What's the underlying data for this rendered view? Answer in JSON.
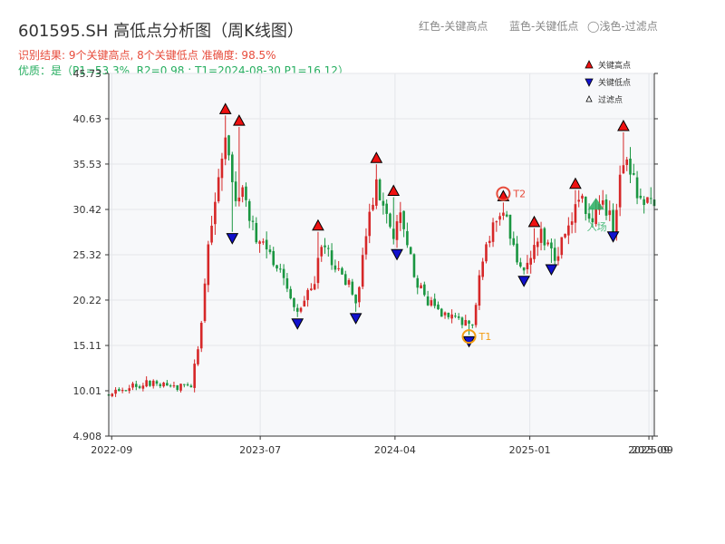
{
  "page": {
    "title": "601595.SH 高低点分析图（周K线图）",
    "hint_red": "红色-关键高点",
    "hint_blue": "蓝色-关键低点",
    "hint_light": "◯浅色-过滤点",
    "result_line": "识别结果: 9个关键高点, 8个关键低点  准确度: 98.5%",
    "quality_line": "优质：是（P1=53.3%, R2=0.98 ; T1=2024-08-30 P1=16.12）"
  },
  "colors": {
    "up": "#d62728",
    "down": "#1a9641",
    "high_marker": "#ee1111",
    "low_marker": "#1111cc",
    "t_circle": "#f39c12",
    "t2_circle": "#e74c3c",
    "buy_marker": "#27ae60",
    "plot_bg": "#f7f8fa",
    "grid": "#e4e6ea"
  },
  "chart_data": {
    "type": "candlestick",
    "x_range": [
      "2022-08-26",
      "2025-09-12"
    ],
    "ylim": [
      4.908,
      45.73
    ],
    "y_ticks": [
      "4.908",
      "10.01",
      "15.11",
      "20.22",
      "25.32",
      "30.42",
      "35.53",
      "40.63",
      "45.73"
    ],
    "x_ticks": [
      {
        "date": "2022-09-01",
        "label": "2022-09"
      },
      {
        "date": "2023-07-01",
        "label": "2023-07"
      },
      {
        "date": "2024-04-01",
        "label": "2024-04"
      },
      {
        "date": "2025-01-01",
        "label": "2025-01"
      },
      {
        "date": "2025-09-01",
        "label": "2025-09"
      },
      {
        "date": "2025-09-08",
        "label": "2025-09"
      }
    ],
    "grid": true,
    "legend": {
      "position": "top-right",
      "entries": [
        {
          "label": "关键高点",
          "marker": "high"
        },
        {
          "label": "关键低点",
          "marker": "low"
        },
        {
          "label": "过滤点",
          "marker": "filtered"
        }
      ]
    },
    "price_path": [
      [
        "2022-08-26",
        9.6
      ],
      [
        "2022-10-15",
        10.6
      ],
      [
        "2022-12-01",
        11.0
      ],
      [
        "2023-01-10",
        10.4
      ],
      [
        "2023-02-10",
        10.7
      ],
      [
        "2023-02-25",
        15.0
      ],
      [
        "2023-03-25",
        30.0
      ],
      [
        "2023-04-20",
        39.0
      ],
      [
        "2023-05-10",
        31.0
      ],
      [
        "2023-05-25",
        33.0
      ],
      [
        "2023-06-20",
        28.0
      ],
      [
        "2023-08-01",
        24.0
      ],
      [
        "2023-09-05",
        20.5
      ],
      [
        "2023-09-20",
        18.5
      ],
      [
        "2023-10-20",
        22.5
      ],
      [
        "2023-11-05",
        27.5
      ],
      [
        "2023-11-25",
        24.0
      ],
      [
        "2023-12-20",
        23.0
      ],
      [
        "2024-01-15",
        19.5
      ],
      [
        "2024-02-01",
        28.0
      ],
      [
        "2024-02-25",
        33.5
      ],
      [
        "2024-03-15",
        30.0
      ],
      [
        "2024-04-01",
        26.0
      ],
      [
        "2024-04-10",
        31.0
      ],
      [
        "2024-05-01",
        25.0
      ],
      [
        "2024-06-01",
        20.0
      ],
      [
        "2024-07-01",
        19.0
      ],
      [
        "2024-08-20",
        17.5
      ],
      [
        "2024-09-10",
        18.0
      ],
      [
        "2024-09-25",
        25.0
      ],
      [
        "2024-10-20",
        28.5
      ],
      [
        "2024-11-08",
        30.5
      ],
      [
        "2024-11-25",
        26.0
      ],
      [
        "2024-12-25",
        24.0
      ],
      [
        "2025-01-10",
        26.0
      ],
      [
        "2025-01-25",
        28.0
      ],
      [
        "2025-02-15",
        25.0
      ],
      [
        "2025-03-20",
        27.5
      ],
      [
        "2025-04-10",
        32.0
      ],
      [
        "2025-04-25",
        30.0
      ],
      [
        "2025-05-15",
        29.5
      ],
      [
        "2025-06-05",
        31.0
      ],
      [
        "2025-06-20",
        28.5
      ],
      [
        "2025-07-10",
        36.0
      ],
      [
        "2025-07-25",
        34.0
      ],
      [
        "2025-08-15",
        31.5
      ],
      [
        "2025-09-12",
        31.8
      ]
    ],
    "key_highs": [
      {
        "date": "2023-04-21",
        "value": 41.2
      },
      {
        "date": "2023-05-19",
        "value": 39.9
      },
      {
        "date": "2023-10-27",
        "value": 28.1
      },
      {
        "date": "2024-02-23",
        "value": 35.7
      },
      {
        "date": "2024-03-29",
        "value": 32.0
      },
      {
        "date": "2024-11-08",
        "value": 31.4
      },
      {
        "date": "2025-01-10",
        "value": 28.5
      },
      {
        "date": "2025-04-04",
        "value": 32.8
      },
      {
        "date": "2025-07-11",
        "value": 39.3
      }
    ],
    "key_lows": [
      {
        "date": "2023-05-05",
        "value": 27.7
      },
      {
        "date": "2023-09-15",
        "value": 18.1
      },
      {
        "date": "2024-01-12",
        "value": 18.7
      },
      {
        "date": "2024-04-05",
        "value": 25.9
      },
      {
        "date": "2024-08-30",
        "value": 16.1
      },
      {
        "date": "2024-12-20",
        "value": 22.9
      },
      {
        "date": "2025-02-14",
        "value": 24.2
      },
      {
        "date": "2025-06-20",
        "value": 27.9
      }
    ],
    "annotations": [
      {
        "label": "T1",
        "date": "2024-08-30",
        "value": 16.12
      },
      {
        "label": "T2",
        "date": "2024-11-08",
        "value": 32.2
      },
      {
        "label": "入场",
        "date": "2025-05-16",
        "value": 30.4
      }
    ]
  }
}
